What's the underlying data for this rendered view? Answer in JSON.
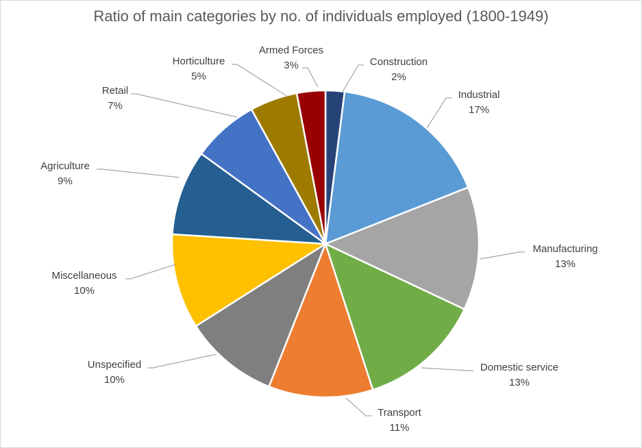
{
  "chart_data": {
    "type": "pie",
    "title": "Ratio of main categories by no. of individuals employed (1800-1949)",
    "slices": [
      {
        "label": "Construction",
        "value": 2,
        "pct_text": "2%",
        "color": "#264478"
      },
      {
        "label": "Industrial",
        "value": 17,
        "pct_text": "17%",
        "color": "#5B9BD5"
      },
      {
        "label": "Manufacturing",
        "value": 13,
        "pct_text": "13%",
        "color": "#A5A5A5"
      },
      {
        "label": "Domestic service",
        "value": 13,
        "pct_text": "13%",
        "color": "#70AD47"
      },
      {
        "label": "Transport",
        "value": 11,
        "pct_text": "11%",
        "color": "#ED7D31"
      },
      {
        "label": "Unspecified",
        "value": 10,
        "pct_text": "10%",
        "color": "#7F7F7F"
      },
      {
        "label": "Miscellaneous",
        "value": 10,
        "pct_text": "10%",
        "color": "#FFC000"
      },
      {
        "label": "Agriculture",
        "value": 9,
        "pct_text": "9%",
        "color": "#255E91"
      },
      {
        "label": "Retail",
        "value": 7,
        "pct_text": "7%",
        "color": "#4472C4"
      },
      {
        "label": "Horticulture",
        "value": 5,
        "pct_text": "5%",
        "color": "#9E7B00"
      },
      {
        "label": "Armed Forces",
        "value": 3,
        "pct_text": "3%",
        "color": "#990000"
      }
    ]
  }
}
